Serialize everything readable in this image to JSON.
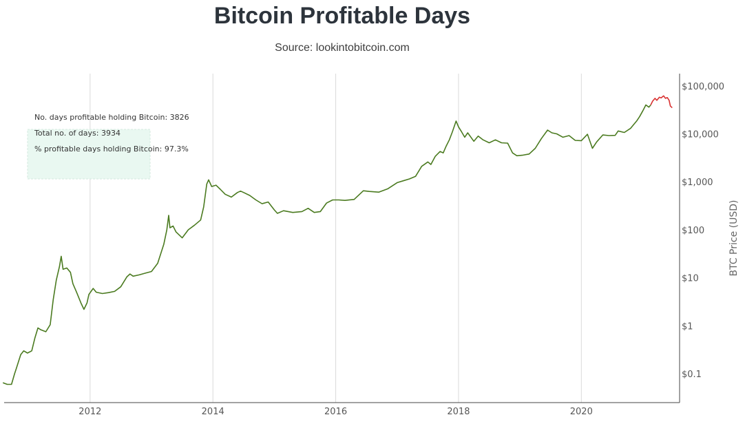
{
  "header": {
    "title": "Bitcoin Profitable Days",
    "subtitle": "Source: lookintobitcoin.com"
  },
  "chart_data": {
    "type": "line",
    "title": "Bitcoin Profitable Days",
    "subtitle": "Source: lookintobitcoin.com",
    "xlabel": "",
    "ylabel": "BTC Price (USD)",
    "y_scale": "log",
    "xlim": [
      2010.6,
      2021.6
    ],
    "ylim": [
      0.025,
      180000
    ],
    "x_ticks": [
      2012,
      2014,
      2016,
      2018,
      2020
    ],
    "x_tick_labels": [
      "2012",
      "2014",
      "2016",
      "2018",
      "2020"
    ],
    "y_ticks": [
      0.1,
      1,
      10,
      100,
      1000,
      10000,
      100000
    ],
    "y_tick_labels": [
      "$0.1",
      "$1",
      "$10",
      "$100",
      "$1,000",
      "$10,000",
      "$100,000"
    ],
    "grid": "vertical",
    "y_axis_position": "right",
    "annotation": {
      "lines": [
        "No. days profitable holding Bitcoin: 3826",
        "Total no. of days: 3934",
        "% profitable days holding Bitcoin: 97.3%"
      ],
      "box_fill": "#e9f8f1",
      "box_border": "#d4eadf"
    },
    "series": [
      {
        "color": "#4a7a1f",
        "points": [
          [
            2010.58,
            0.065
          ],
          [
            2010.65,
            0.06
          ],
          [
            2010.72,
            0.06
          ],
          [
            2010.77,
            0.1
          ],
          [
            2010.8,
            0.13
          ],
          [
            2010.87,
            0.25
          ],
          [
            2010.92,
            0.3
          ],
          [
            2010.98,
            0.27
          ],
          [
            2011.05,
            0.3
          ],
          [
            2011.1,
            0.55
          ],
          [
            2011.15,
            0.9
          ],
          [
            2011.2,
            0.82
          ],
          [
            2011.28,
            0.75
          ],
          [
            2011.35,
            1.05
          ],
          [
            2011.4,
            3.5
          ],
          [
            2011.45,
            9
          ],
          [
            2011.5,
            17
          ],
          [
            2011.53,
            28
          ],
          [
            2011.56,
            15
          ],
          [
            2011.62,
            16
          ],
          [
            2011.68,
            13
          ],
          [
            2011.72,
            7.5
          ],
          [
            2011.78,
            5
          ],
          [
            2011.85,
            3
          ],
          [
            2011.9,
            2.2
          ],
          [
            2011.95,
            3
          ],
          [
            2011.98,
            4.5
          ],
          [
            2012.05,
            6
          ],
          [
            2012.1,
            5
          ],
          [
            2012.2,
            4.7
          ],
          [
            2012.3,
            4.9
          ],
          [
            2012.4,
            5.2
          ],
          [
            2012.5,
            6.5
          ],
          [
            2012.6,
            10.5
          ],
          [
            2012.65,
            12
          ],
          [
            2012.7,
            10.8
          ],
          [
            2012.8,
            11.5
          ],
          [
            2012.9,
            12.5
          ],
          [
            2013.0,
            13.5
          ],
          [
            2013.1,
            20
          ],
          [
            2013.2,
            50
          ],
          [
            2013.25,
            100
          ],
          [
            2013.28,
            200
          ],
          [
            2013.3,
            110
          ],
          [
            2013.35,
            120
          ],
          [
            2013.4,
            90
          ],
          [
            2013.5,
            68
          ],
          [
            2013.6,
            100
          ],
          [
            2013.7,
            125
          ],
          [
            2013.8,
            160
          ],
          [
            2013.85,
            300
          ],
          [
            2013.9,
            900
          ],
          [
            2013.93,
            1100
          ],
          [
            2013.98,
            800
          ],
          [
            2014.05,
            850
          ],
          [
            2014.12,
            700
          ],
          [
            2014.2,
            550
          ],
          [
            2014.3,
            480
          ],
          [
            2014.4,
            600
          ],
          [
            2014.45,
            640
          ],
          [
            2014.5,
            600
          ],
          [
            2014.6,
            520
          ],
          [
            2014.7,
            420
          ],
          [
            2014.8,
            350
          ],
          [
            2014.9,
            380
          ],
          [
            2015.0,
            260
          ],
          [
            2015.05,
            220
          ],
          [
            2015.15,
            250
          ],
          [
            2015.3,
            230
          ],
          [
            2015.45,
            240
          ],
          [
            2015.55,
            280
          ],
          [
            2015.65,
            230
          ],
          [
            2015.75,
            240
          ],
          [
            2015.85,
            360
          ],
          [
            2015.95,
            420
          ],
          [
            2016.05,
            420
          ],
          [
            2016.15,
            410
          ],
          [
            2016.3,
            430
          ],
          [
            2016.45,
            650
          ],
          [
            2016.55,
            630
          ],
          [
            2016.7,
            610
          ],
          [
            2016.85,
            720
          ],
          [
            2017.0,
            960
          ],
          [
            2017.1,
            1050
          ],
          [
            2017.2,
            1150
          ],
          [
            2017.3,
            1300
          ],
          [
            2017.4,
            2100
          ],
          [
            2017.5,
            2600
          ],
          [
            2017.55,
            2300
          ],
          [
            2017.62,
            3400
          ],
          [
            2017.7,
            4300
          ],
          [
            2017.75,
            4000
          ],
          [
            2017.8,
            5600
          ],
          [
            2017.85,
            7500
          ],
          [
            2017.9,
            11000
          ],
          [
            2017.96,
            18500
          ],
          [
            2018.0,
            14000
          ],
          [
            2018.05,
            11000
          ],
          [
            2018.1,
            8500
          ],
          [
            2018.15,
            10500
          ],
          [
            2018.25,
            7000
          ],
          [
            2018.32,
            9000
          ],
          [
            2018.4,
            7500
          ],
          [
            2018.5,
            6500
          ],
          [
            2018.6,
            7500
          ],
          [
            2018.7,
            6500
          ],
          [
            2018.8,
            6400
          ],
          [
            2018.88,
            4000
          ],
          [
            2018.95,
            3500
          ],
          [
            2019.05,
            3600
          ],
          [
            2019.15,
            3800
          ],
          [
            2019.25,
            5000
          ],
          [
            2019.35,
            8000
          ],
          [
            2019.45,
            12000
          ],
          [
            2019.52,
            10500
          ],
          [
            2019.6,
            10000
          ],
          [
            2019.7,
            8500
          ],
          [
            2019.8,
            9200
          ],
          [
            2019.9,
            7300
          ],
          [
            2020.0,
            7200
          ],
          [
            2020.1,
            9800
          ],
          [
            2020.18,
            5000
          ],
          [
            2020.25,
            6800
          ],
          [
            2020.35,
            9500
          ],
          [
            2020.45,
            9200
          ],
          [
            2020.55,
            9300
          ],
          [
            2020.6,
            11500
          ],
          [
            2020.7,
            10700
          ],
          [
            2020.8,
            13000
          ],
          [
            2020.85,
            15500
          ],
          [
            2020.9,
            18500
          ],
          [
            2020.95,
            23000
          ],
          [
            2021.0,
            30000
          ],
          [
            2021.05,
            40000
          ],
          [
            2021.1,
            36000
          ],
          [
            2021.13,
            40000
          ]
        ]
      },
      {
        "color": "#d93030",
        "points": [
          [
            2021.13,
            40000
          ],
          [
            2021.16,
            48000
          ],
          [
            2021.2,
            55000
          ],
          [
            2021.23,
            50000
          ],
          [
            2021.27,
            58000
          ],
          [
            2021.3,
            56000
          ],
          [
            2021.34,
            62000
          ],
          [
            2021.37,
            55000
          ],
          [
            2021.4,
            57000
          ],
          [
            2021.43,
            50000
          ],
          [
            2021.45,
            38000
          ],
          [
            2021.48,
            35000
          ]
        ]
      }
    ]
  }
}
